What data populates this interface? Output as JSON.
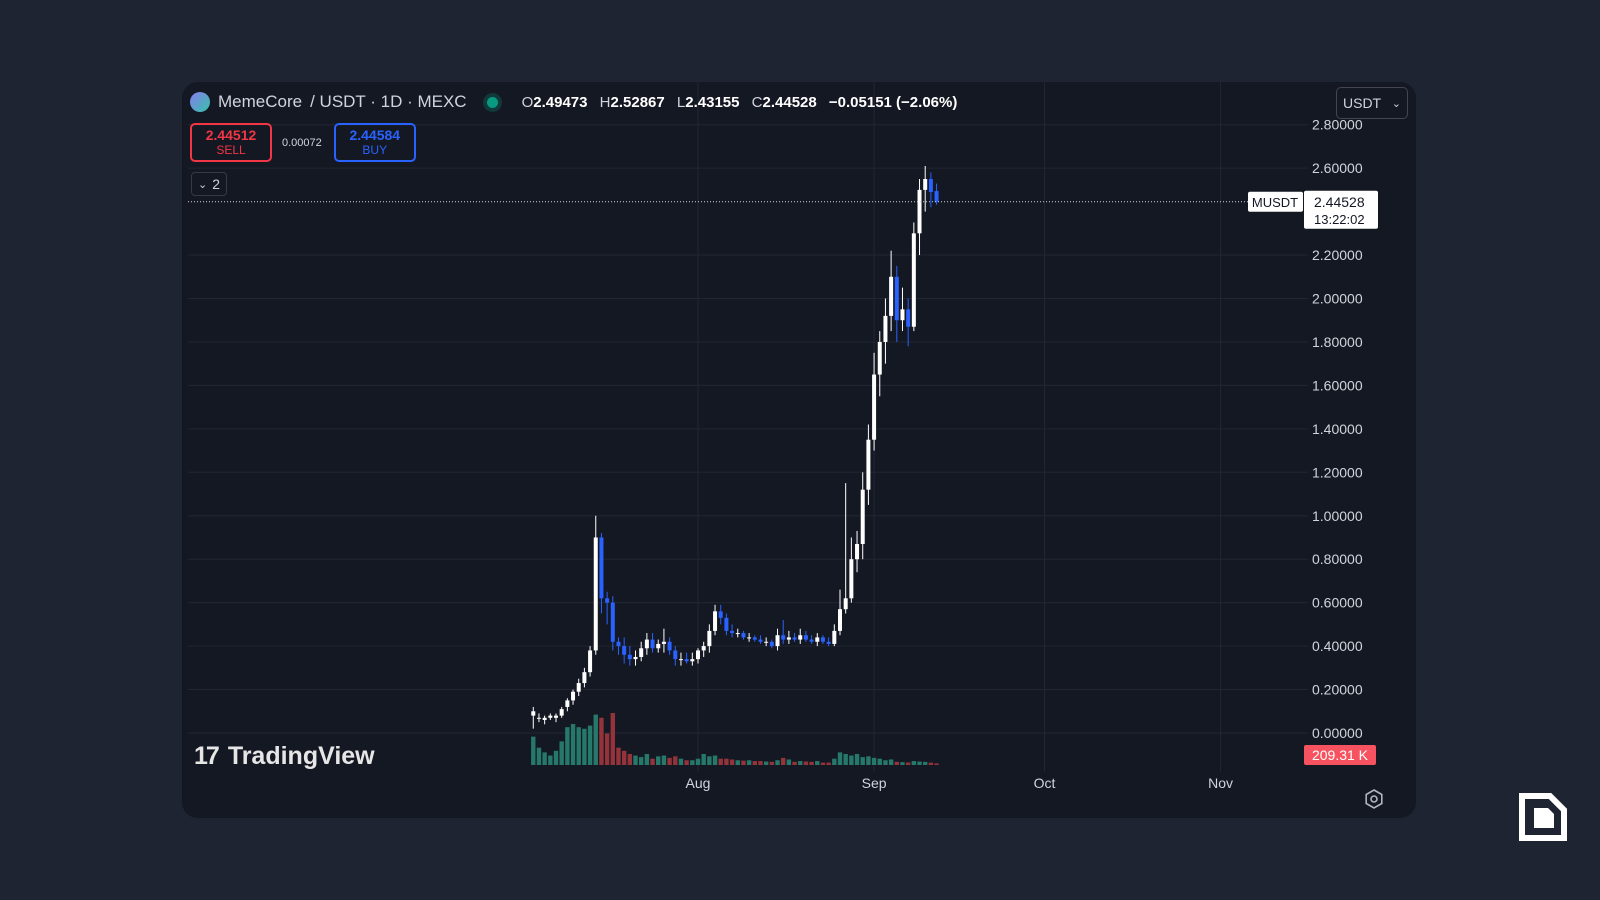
{
  "header": {
    "symbol": "MemeCore",
    "pair": "/ USDT · 1D · MEXC",
    "ohlc": {
      "o_key": "O",
      "o": "2.49473",
      "h_key": "H",
      "h": "2.52867",
      "l_key": "L",
      "l": "2.43155",
      "c_key": "C",
      "c": "2.44528",
      "change": "−0.05151 (−2.06%)"
    },
    "currency": "USDT"
  },
  "trade": {
    "sell_price": "2.44512",
    "sell_label": "SELL",
    "spread": "0.00072",
    "buy_price": "2.44584",
    "buy_label": "BUY"
  },
  "indicators_toggle": "2",
  "price_tag": {
    "ticker": "MUSDT",
    "price": "2.44528",
    "countdown": "13:22:02"
  },
  "volume_tag": "209.31 K",
  "branding": "TradingView",
  "colors": {
    "background": "#1f2433",
    "panel": "#141823",
    "grid": "#222633",
    "up_candle": "#ffffff",
    "down_candle": "#2962ff",
    "vol_up": "#26786b",
    "vol_down": "#94333a",
    "sell": "#f23645",
    "buy": "#2962ff",
    "volume_tag": "#f7525f"
  },
  "chart_data": {
    "type": "candlestick",
    "y_axis": {
      "ticks": [
        "2.80000",
        "2.60000",
        "2.20000",
        "2.00000",
        "1.80000",
        "1.60000",
        "1.40000",
        "1.20000",
        "1.00000",
        "0.80000",
        "0.60000",
        "0.40000",
        "0.20000",
        "0.00000"
      ],
      "range": [
        -0.05,
        2.8
      ]
    },
    "x_axis": {
      "ticks": [
        "Aug",
        "Sep",
        "Oct",
        "Nov"
      ]
    },
    "grid": true,
    "last_price": 2.44528,
    "candles": [
      {
        "d": "2025-07-03",
        "o": 0.08,
        "h": 0.12,
        "l": 0.02,
        "c": 0.1,
        "v": 180
      },
      {
        "d": "2025-07-04",
        "o": 0.07,
        "h": 0.09,
        "l": 0.05,
        "c": 0.07,
        "v": 110
      },
      {
        "d": "2025-07-05",
        "o": 0.06,
        "h": 0.08,
        "l": 0.04,
        "c": 0.07,
        "v": 80
      },
      {
        "d": "2025-07-06",
        "o": 0.07,
        "h": 0.09,
        "l": 0.06,
        "c": 0.08,
        "v": 60
      },
      {
        "d": "2025-07-07",
        "o": 0.07,
        "h": 0.09,
        "l": 0.05,
        "c": 0.08,
        "v": 90
      },
      {
        "d": "2025-07-08",
        "o": 0.08,
        "h": 0.12,
        "l": 0.07,
        "c": 0.11,
        "v": 150
      },
      {
        "d": "2025-07-09",
        "o": 0.12,
        "h": 0.16,
        "l": 0.1,
        "c": 0.15,
        "v": 240
      },
      {
        "d": "2025-07-10",
        "o": 0.15,
        "h": 0.2,
        "l": 0.13,
        "c": 0.19,
        "v": 260
      },
      {
        "d": "2025-07-11",
        "o": 0.19,
        "h": 0.25,
        "l": 0.17,
        "c": 0.23,
        "v": 240
      },
      {
        "d": "2025-07-12",
        "o": 0.23,
        "h": 0.3,
        "l": 0.21,
        "c": 0.28,
        "v": 230
      },
      {
        "d": "2025-07-13",
        "o": 0.28,
        "h": 0.4,
        "l": 0.26,
        "c": 0.38,
        "v": 250
      },
      {
        "d": "2025-07-14",
        "o": 0.38,
        "h": 1.0,
        "l": 0.36,
        "c": 0.9,
        "v": 320
      },
      {
        "d": "2025-07-15",
        "o": 0.9,
        "h": 0.92,
        "l": 0.55,
        "c": 0.62,
        "v": 300
      },
      {
        "d": "2025-07-16",
        "o": 0.62,
        "h": 0.65,
        "l": 0.5,
        "c": 0.6,
        "v": 200
      },
      {
        "d": "2025-07-17",
        "o": 0.6,
        "h": 0.63,
        "l": 0.38,
        "c": 0.42,
        "v": 330
      },
      {
        "d": "2025-07-18",
        "o": 0.42,
        "h": 0.44,
        "l": 0.36,
        "c": 0.4,
        "v": 110
      },
      {
        "d": "2025-07-19",
        "o": 0.4,
        "h": 0.44,
        "l": 0.32,
        "c": 0.36,
        "v": 90
      },
      {
        "d": "2025-07-20",
        "o": 0.36,
        "h": 0.4,
        "l": 0.31,
        "c": 0.34,
        "v": 70
      },
      {
        "d": "2025-07-21",
        "o": 0.34,
        "h": 0.38,
        "l": 0.31,
        "c": 0.35,
        "v": 60
      },
      {
        "d": "2025-07-22",
        "o": 0.35,
        "h": 0.42,
        "l": 0.33,
        "c": 0.39,
        "v": 50
      },
      {
        "d": "2025-07-23",
        "o": 0.39,
        "h": 0.46,
        "l": 0.36,
        "c": 0.43,
        "v": 70
      },
      {
        "d": "2025-07-24",
        "o": 0.43,
        "h": 0.46,
        "l": 0.37,
        "c": 0.39,
        "v": 40
      },
      {
        "d": "2025-07-25",
        "o": 0.39,
        "h": 0.43,
        "l": 0.37,
        "c": 0.41,
        "v": 55
      },
      {
        "d": "2025-07-26",
        "o": 0.41,
        "h": 0.48,
        "l": 0.37,
        "c": 0.42,
        "v": 60
      },
      {
        "d": "2025-07-27",
        "o": 0.42,
        "h": 0.44,
        "l": 0.36,
        "c": 0.38,
        "v": 45
      },
      {
        "d": "2025-07-28",
        "o": 0.38,
        "h": 0.4,
        "l": 0.31,
        "c": 0.34,
        "v": 55
      },
      {
        "d": "2025-07-29",
        "o": 0.34,
        "h": 0.37,
        "l": 0.31,
        "c": 0.34,
        "v": 40
      },
      {
        "d": "2025-07-30",
        "o": 0.34,
        "h": 0.37,
        "l": 0.32,
        "c": 0.33,
        "v": 30
      },
      {
        "d": "2025-07-31",
        "o": 0.33,
        "h": 0.37,
        "l": 0.31,
        "c": 0.34,
        "v": 30
      },
      {
        "d": "2025-08-01",
        "o": 0.34,
        "h": 0.39,
        "l": 0.32,
        "c": 0.38,
        "v": 40
      },
      {
        "d": "2025-08-02",
        "o": 0.38,
        "h": 0.42,
        "l": 0.35,
        "c": 0.4,
        "v": 70
      },
      {
        "d": "2025-08-03",
        "o": 0.4,
        "h": 0.5,
        "l": 0.37,
        "c": 0.47,
        "v": 55
      },
      {
        "d": "2025-08-04",
        "o": 0.47,
        "h": 0.59,
        "l": 0.45,
        "c": 0.56,
        "v": 60
      },
      {
        "d": "2025-08-05",
        "o": 0.56,
        "h": 0.59,
        "l": 0.5,
        "c": 0.53,
        "v": 40
      },
      {
        "d": "2025-08-06",
        "o": 0.53,
        "h": 0.55,
        "l": 0.45,
        "c": 0.47,
        "v": 40
      },
      {
        "d": "2025-08-07",
        "o": 0.47,
        "h": 0.5,
        "l": 0.44,
        "c": 0.46,
        "v": 35
      },
      {
        "d": "2025-08-08",
        "o": 0.46,
        "h": 0.48,
        "l": 0.44,
        "c": 0.46,
        "v": 30
      },
      {
        "d": "2025-08-09",
        "o": 0.46,
        "h": 0.47,
        "l": 0.43,
        "c": 0.44,
        "v": 28
      },
      {
        "d": "2025-08-10",
        "o": 0.44,
        "h": 0.46,
        "l": 0.42,
        "c": 0.44,
        "v": 30
      },
      {
        "d": "2025-08-11",
        "o": 0.44,
        "h": 0.45,
        "l": 0.42,
        "c": 0.43,
        "v": 25
      },
      {
        "d": "2025-08-12",
        "o": 0.43,
        "h": 0.45,
        "l": 0.41,
        "c": 0.42,
        "v": 25
      },
      {
        "d": "2025-08-13",
        "o": 0.42,
        "h": 0.44,
        "l": 0.4,
        "c": 0.42,
        "v": 22
      },
      {
        "d": "2025-08-14",
        "o": 0.42,
        "h": 0.43,
        "l": 0.39,
        "c": 0.4,
        "v": 20
      },
      {
        "d": "2025-08-15",
        "o": 0.4,
        "h": 0.48,
        "l": 0.38,
        "c": 0.45,
        "v": 30
      },
      {
        "d": "2025-08-16",
        "o": 0.45,
        "h": 0.52,
        "l": 0.41,
        "c": 0.43,
        "v": 45
      },
      {
        "d": "2025-08-17",
        "o": 0.43,
        "h": 0.47,
        "l": 0.41,
        "c": 0.44,
        "v": 35
      },
      {
        "d": "2025-08-18",
        "o": 0.44,
        "h": 0.46,
        "l": 0.42,
        "c": 0.43,
        "v": 20
      },
      {
        "d": "2025-08-19",
        "o": 0.43,
        "h": 0.48,
        "l": 0.41,
        "c": 0.45,
        "v": 25
      },
      {
        "d": "2025-08-20",
        "o": 0.45,
        "h": 0.47,
        "l": 0.42,
        "c": 0.43,
        "v": 22
      },
      {
        "d": "2025-08-21",
        "o": 0.43,
        "h": 0.45,
        "l": 0.41,
        "c": 0.42,
        "v": 20
      },
      {
        "d": "2025-08-22",
        "o": 0.42,
        "h": 0.46,
        "l": 0.4,
        "c": 0.44,
        "v": 25
      },
      {
        "d": "2025-08-23",
        "o": 0.44,
        "h": 0.45,
        "l": 0.41,
        "c": 0.42,
        "v": 15
      },
      {
        "d": "2025-08-24",
        "o": 0.42,
        "h": 0.44,
        "l": 0.4,
        "c": 0.41,
        "v": 15
      },
      {
        "d": "2025-08-25",
        "o": 0.41,
        "h": 0.5,
        "l": 0.4,
        "c": 0.47,
        "v": 40
      },
      {
        "d": "2025-08-26",
        "o": 0.47,
        "h": 0.66,
        "l": 0.45,
        "c": 0.57,
        "v": 80
      },
      {
        "d": "2025-08-27",
        "o": 0.57,
        "h": 1.15,
        "l": 0.55,
        "c": 0.62,
        "v": 70
      },
      {
        "d": "2025-08-28",
        "o": 0.62,
        "h": 0.9,
        "l": 0.6,
        "c": 0.8,
        "v": 60
      },
      {
        "d": "2025-08-29",
        "o": 0.8,
        "h": 0.93,
        "l": 0.74,
        "c": 0.87,
        "v": 70
      },
      {
        "d": "2025-08-30",
        "o": 0.87,
        "h": 1.2,
        "l": 0.8,
        "c": 1.12,
        "v": 50
      },
      {
        "d": "2025-08-31",
        "o": 1.12,
        "h": 1.42,
        "l": 1.05,
        "c": 1.35,
        "v": 55
      },
      {
        "d": "2025-09-01",
        "o": 1.35,
        "h": 1.75,
        "l": 1.3,
        "c": 1.65,
        "v": 45
      },
      {
        "d": "2025-09-02",
        "o": 1.65,
        "h": 1.85,
        "l": 1.55,
        "c": 1.8,
        "v": 40
      },
      {
        "d": "2025-09-03",
        "o": 1.8,
        "h": 2.0,
        "l": 1.7,
        "c": 1.92,
        "v": 30
      },
      {
        "d": "2025-09-04",
        "o": 1.92,
        "h": 2.22,
        "l": 1.85,
        "c": 2.1,
        "v": 35
      },
      {
        "d": "2025-09-05",
        "o": 2.1,
        "h": 2.15,
        "l": 1.8,
        "c": 1.9,
        "v": 20
      },
      {
        "d": "2025-09-06",
        "o": 1.9,
        "h": 2.05,
        "l": 1.85,
        "c": 1.95,
        "v": 18
      },
      {
        "d": "2025-09-07",
        "o": 1.95,
        "h": 2.0,
        "l": 1.78,
        "c": 1.87,
        "v": 16
      },
      {
        "d": "2025-09-08",
        "o": 1.87,
        "h": 2.35,
        "l": 1.85,
        "c": 2.3,
        "v": 25
      },
      {
        "d": "2025-09-09",
        "o": 2.3,
        "h": 2.55,
        "l": 2.2,
        "c": 2.5,
        "v": 22
      },
      {
        "d": "2025-09-10",
        "o": 2.5,
        "h": 2.61,
        "l": 2.4,
        "c": 2.55,
        "v": 20
      },
      {
        "d": "2025-09-11",
        "o": 2.55,
        "h": 2.58,
        "l": 2.42,
        "c": 2.49,
        "v": 15
      },
      {
        "d": "2025-09-12",
        "o": 2.49473,
        "h": 2.52867,
        "l": 2.43155,
        "c": 2.44528,
        "v": 10
      }
    ]
  }
}
